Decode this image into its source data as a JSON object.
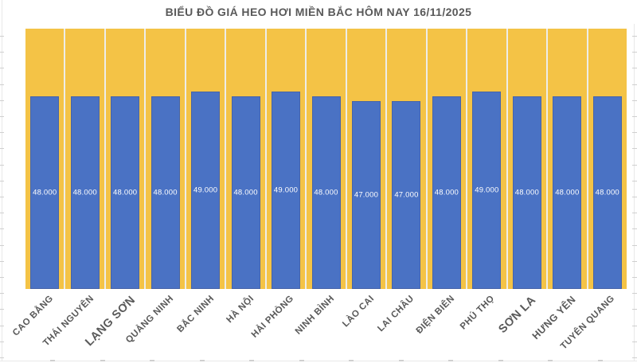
{
  "chart_data": {
    "type": "bar",
    "title": "BIỂU ĐỒ GIÁ HEO HƠI MIỀN BẮC HÔM NAY 16/11/2025",
    "categories": [
      "CAO BẰNG",
      "THÁI NGUYÊN",
      "LẠNG SƠN",
      "QUẢNG NINH",
      "BẮC NINH",
      "HÀ NỘI",
      "HẢI PHÒNG",
      "NINH BÌNH",
      "LÀO CAI",
      "LAI CHÂU",
      "ĐIỆN BIÊN",
      "PHÚ THỌ",
      "SƠN LA",
      "HƯNG YÊN",
      "TUYÊN QUANG"
    ],
    "values": [
      48000,
      48000,
      48000,
      48000,
      49000,
      48000,
      49000,
      48000,
      47000,
      47000,
      48000,
      49000,
      48000,
      48000,
      48000
    ],
    "value_labels": [
      "48.000",
      "48.000",
      "48.000",
      "48.000",
      "49.000",
      "48.000",
      "49.000",
      "48.000",
      "47.000",
      "47.000",
      "48.000",
      "49.000",
      "48.000",
      "48.000",
      "48.000"
    ],
    "label_emphasis": [
      "normal",
      "normal",
      "large",
      "normal",
      "normal",
      "normal",
      "normal",
      "normal",
      "normal",
      "normal",
      "normal",
      "normal",
      "large",
      "medium",
      "normal"
    ],
    "value_range_shown": [
      47000,
      49000
    ],
    "value_axis_visible": false,
    "gridlines": "vertical-white-between-categories",
    "data_labels": "inside-center",
    "legend": "none",
    "colors": {
      "bar": "#4A72C4",
      "plot_background": "#F4C346",
      "gridline": "#EDEDEA",
      "title_text": "#595959",
      "axis_text": "#595959",
      "value_label_text": "#FFFFFF"
    }
  }
}
